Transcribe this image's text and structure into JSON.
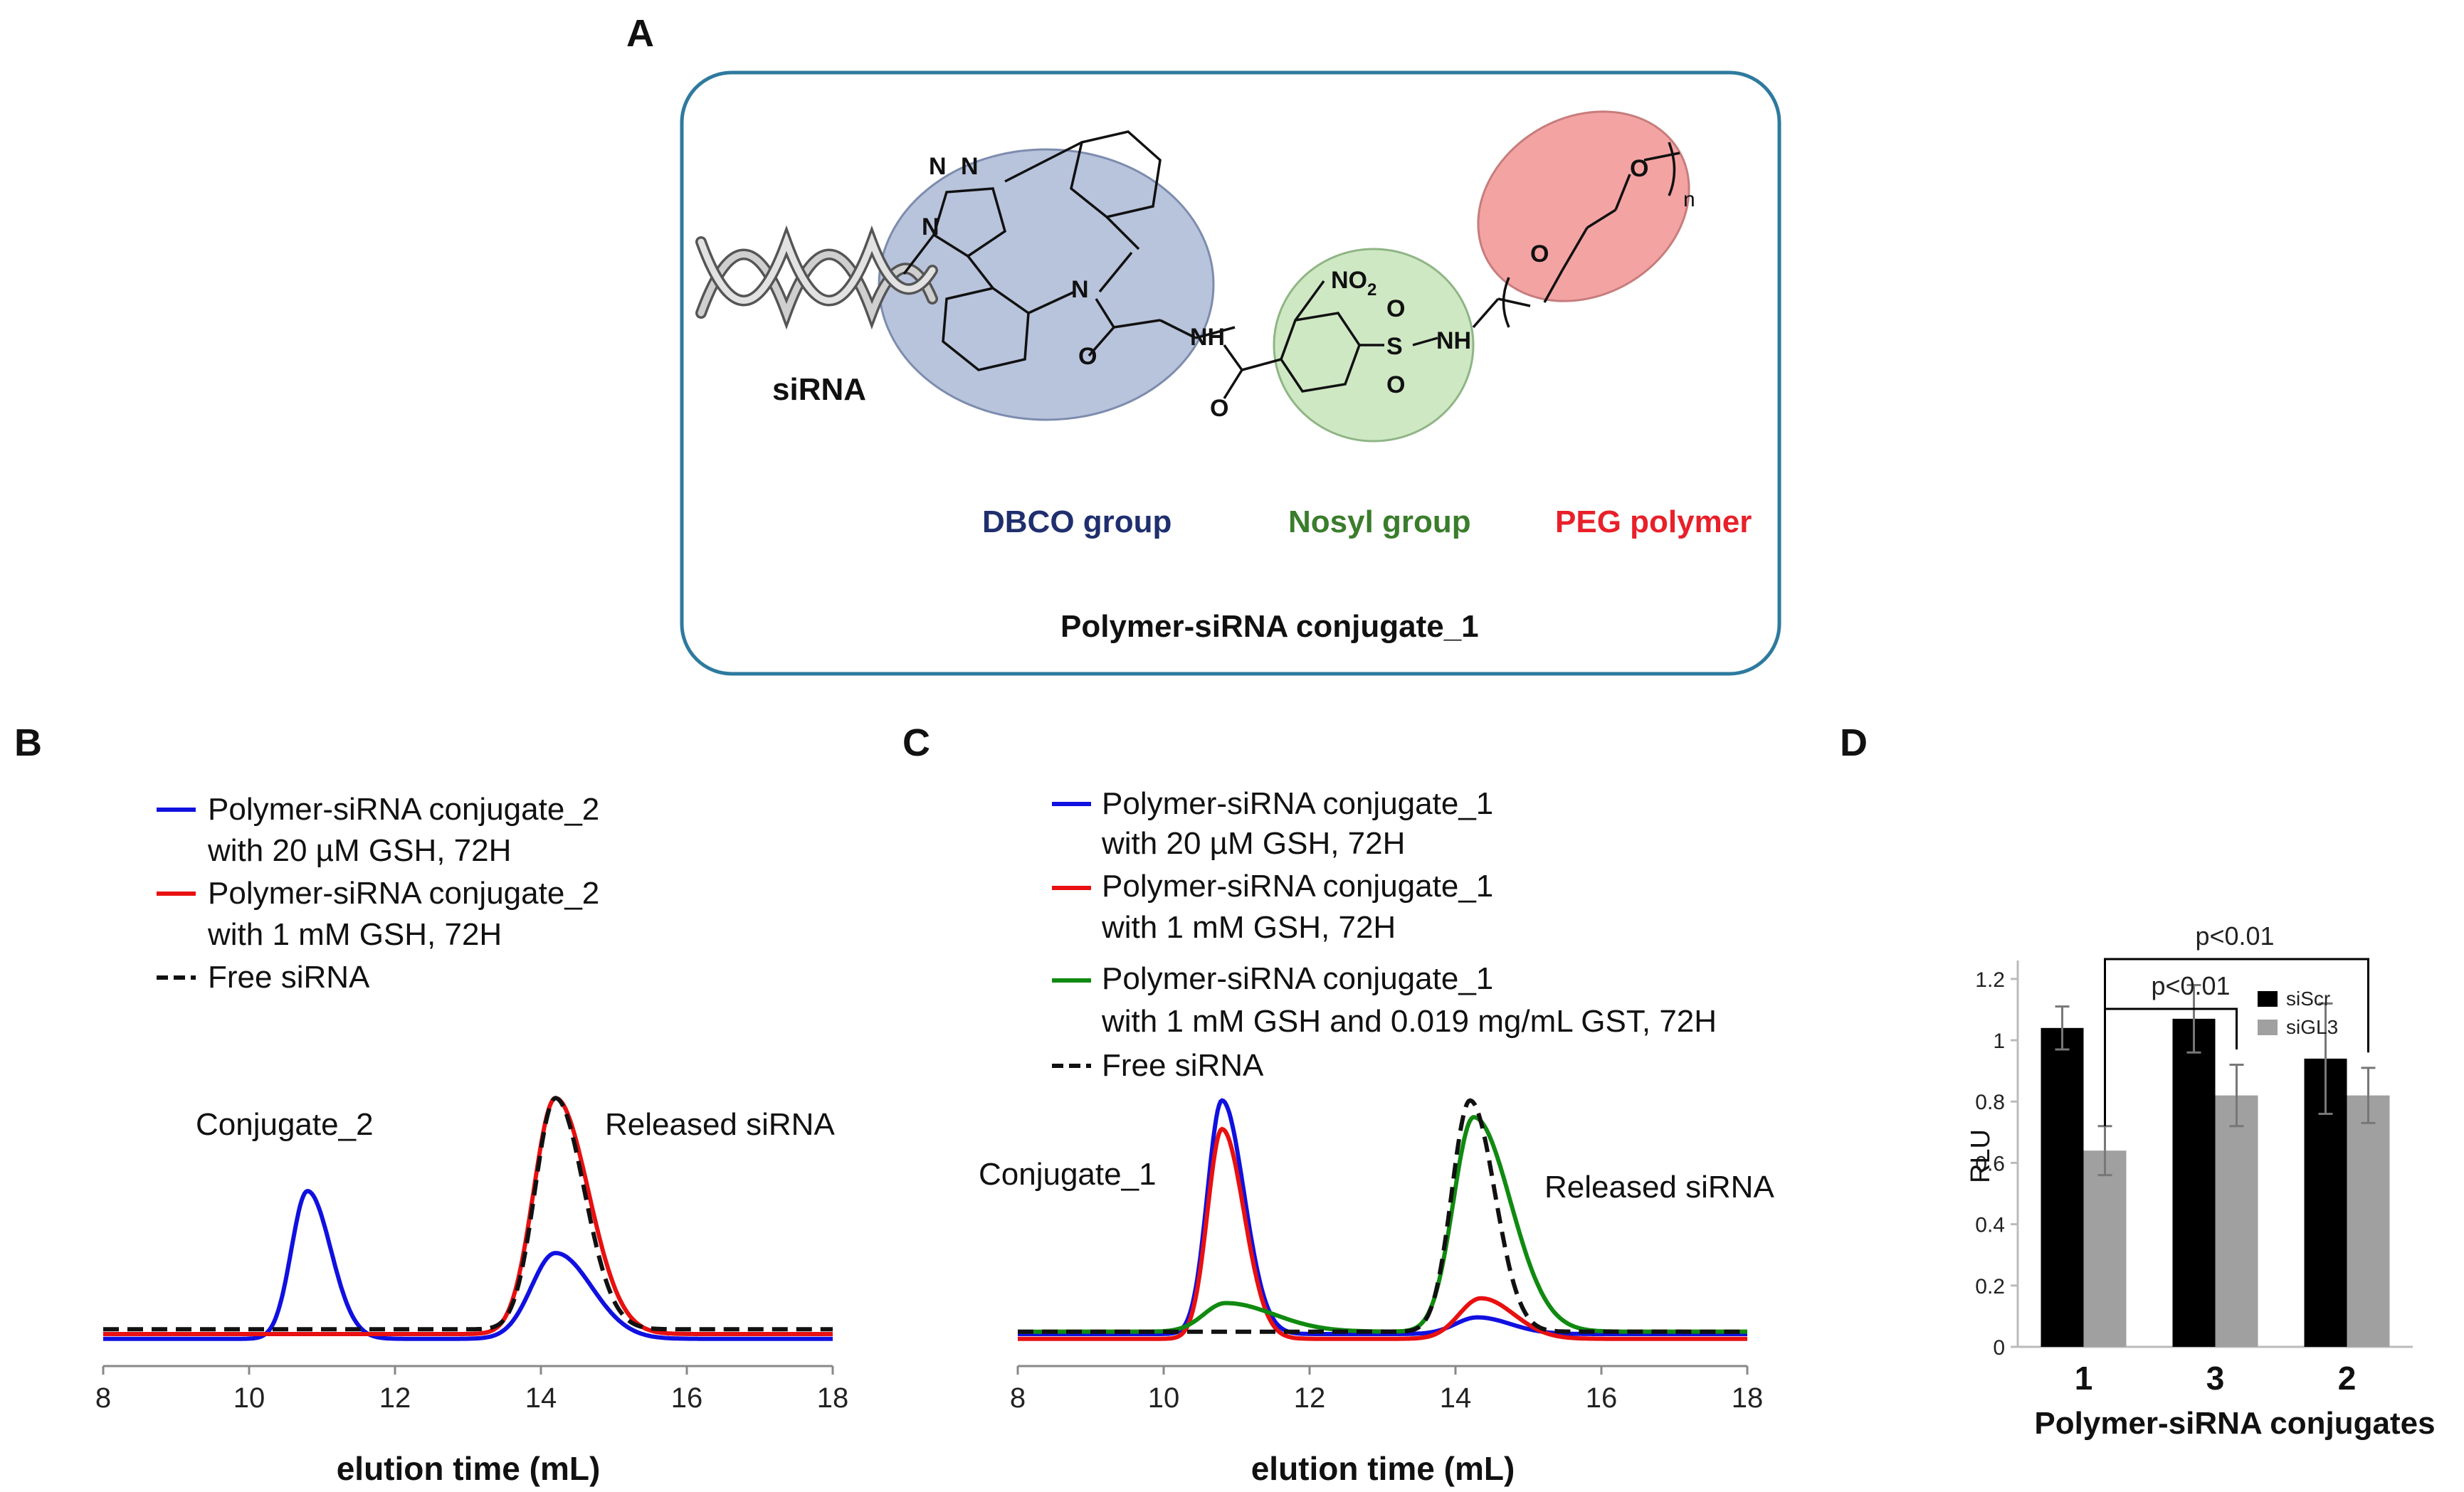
{
  "panels": {
    "a": {
      "letter": "A",
      "caption": "Polymer-siRNA conjugate_1",
      "sirna_label": "siRNA",
      "groups": [
        {
          "label": "DBCO group",
          "color": "#1f2f6e"
        },
        {
          "label": "Nosyl group",
          "color": "#3a7d2c"
        },
        {
          "label": "PEG polymer",
          "color": "#e8202a"
        }
      ],
      "atoms": {
        "n1": "N",
        "n2": "N",
        "n3": "N",
        "n_ring": "N",
        "o_amide1": "O",
        "nh1": "NH",
        "o_amide2": "O",
        "no2": "NO",
        "no2_sub": "2",
        "s": "S",
        "so_top": "O",
        "so_bot": "O",
        "nh2": "NH",
        "o_peg1": "O",
        "o_peg2": "O",
        "n_repeat": "n"
      },
      "colors": {
        "frame": "#2e7a9e",
        "dbco_fill": "#b8c4dc",
        "nosyl_fill": "#cfe8c4",
        "peg_fill": "#f4a3a3"
      }
    },
    "b": {
      "letter": "B",
      "legend": [
        {
          "line1": "Polymer-siRNA conjugate_2",
          "line2": "with 20 µM GSH, 72H",
          "color": "#1010e0",
          "dash": false
        },
        {
          "line1": "Polymer-siRNA conjugate_2",
          "line2": "with 1 mM GSH, 72H",
          "color": "#e81010",
          "dash": false
        },
        {
          "line1": "Free siRNA",
          "line2": "",
          "color": "#111111",
          "dash": true
        }
      ],
      "annotations": [
        "Conjugate_2",
        "Released siRNA"
      ]
    },
    "c": {
      "letter": "C",
      "legend": [
        {
          "line1": "Polymer-siRNA conjugate_1",
          "line2": "with 20 µM GSH, 72H",
          "color": "#1010e0",
          "dash": false
        },
        {
          "line1": "Polymer-siRNA conjugate_1",
          "line2": "with 1 mM GSH, 72H",
          "color": "#e81010",
          "dash": false
        },
        {
          "line1": "Polymer-siRNA conjugate_1",
          "line2": "with 1 mM GSH and 0.019 mg/mL GST, 72H",
          "color": "#108a10",
          "dash": false
        },
        {
          "line1": "Free siRNA",
          "line2": "",
          "color": "#111111",
          "dash": true
        }
      ],
      "annotations": [
        "Conjugate_1",
        "Released siRNA"
      ]
    },
    "d": {
      "letter": "D"
    }
  },
  "chart_data": [
    {
      "type": "line",
      "panel": "B",
      "xlabel": "elution time (mL)",
      "ylabel": "",
      "xlim": [
        8,
        18
      ],
      "xticks": [
        "8",
        "10",
        "12",
        "14",
        "16",
        "18"
      ],
      "series": [
        {
          "name": "Polymer-siRNA conjugate_2 with 20 µM GSH, 72H",
          "color": "#1010e0",
          "peaks": [
            {
              "center": 10.8,
              "height": 0.62,
              "sigma": 0.22,
              "tail": 0.45
            },
            {
              "center": 14.2,
              "height": 0.36,
              "sigma": 0.33,
              "tail": 0.5
            }
          ],
          "baseline": -0.02
        },
        {
          "name": "Polymer-siRNA conjugate_2 with 1 mM GSH, 72H",
          "color": "#e81010",
          "peaks": [
            {
              "center": 14.2,
              "height": 0.99,
              "sigma": 0.3,
              "tail": 0.5
            }
          ],
          "baseline": 0.0
        },
        {
          "name": "Free siRNA",
          "color": "#111111",
          "peaks": [
            {
              "center": 14.2,
              "height": 0.97,
              "sigma": 0.28,
              "tail": 0.4
            }
          ],
          "baseline": 0.02
        }
      ]
    },
    {
      "type": "line",
      "panel": "C",
      "xlabel": "elution time (mL)",
      "ylabel": "",
      "xlim": [
        8,
        18
      ],
      "xticks": [
        "8",
        "10",
        "12",
        "14",
        "16",
        "18"
      ],
      "series": [
        {
          "name": "Polymer-siRNA conjugate_1 with 20 µM GSH, 72H",
          "color": "#1010e0",
          "peaks": [
            {
              "center": 10.8,
              "height": 0.98,
              "sigma": 0.2,
              "tail": 0.5
            },
            {
              "center": 14.3,
              "height": 0.07,
              "sigma": 0.3,
              "tail": 0.5
            }
          ],
          "baseline": 0.0
        },
        {
          "name": "Polymer-siRNA conjugate_1 with 1 mM GSH, 72H",
          "color": "#e81010",
          "peaks": [
            {
              "center": 10.8,
              "height": 0.88,
              "sigma": 0.2,
              "tail": 0.5
            },
            {
              "center": 14.35,
              "height": 0.17,
              "sigma": 0.3,
              "tail": 0.5
            }
          ],
          "baseline": -0.02
        },
        {
          "name": "Polymer-siRNA conjugate_1 with 1 mM GSH and 0.019 mg/mL GST, 72H",
          "color": "#108a10",
          "peaks": [
            {
              "center": 10.85,
              "height": 0.12,
              "sigma": 0.3,
              "tail": 1.2
            },
            {
              "center": 14.25,
              "height": 0.9,
              "sigma": 0.28,
              "tail": 0.8
            }
          ],
          "baseline": 0.01
        },
        {
          "name": "Free siRNA",
          "color": "#111111",
          "peaks": [
            {
              "center": 14.2,
              "height": 0.97,
              "sigma": 0.25,
              "tail": 0.35
            }
          ],
          "baseline": 0.01
        }
      ]
    },
    {
      "type": "bar",
      "panel": "D",
      "title": "",
      "xlabel": "Polymer-siRNA conjugates",
      "ylabel": "RLU",
      "categories": [
        "1",
        "3",
        "2"
      ],
      "ylim": [
        0,
        1.2
      ],
      "yticks": [
        "0",
        "0.2",
        "0.4",
        "0.6",
        "0.8",
        "1",
        "1.2"
      ],
      "series": [
        {
          "name": "siScr",
          "color": "#000000",
          "values": [
            1.04,
            1.07,
            0.94
          ],
          "errors": [
            0.07,
            0.11,
            0.18
          ]
        },
        {
          "name": "siGL3",
          "color": "#a0a0a0",
          "values": [
            0.64,
            0.82,
            0.82
          ],
          "errors": [
            0.08,
            0.1,
            0.09
          ]
        }
      ],
      "significance": [
        {
          "label": "p<0.01",
          "from": "1",
          "to": "3"
        },
        {
          "label": "p<0.01",
          "from": "1",
          "to": "2"
        }
      ]
    }
  ]
}
